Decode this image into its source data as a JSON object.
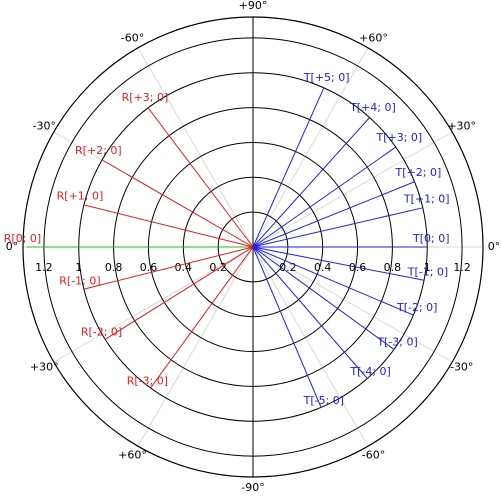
{
  "chart_data": {
    "type": "polar",
    "rlim": [
      0,
      1.32
    ],
    "rticks": [
      0.2,
      0.4,
      0.6,
      0.8,
      1,
      1.2
    ],
    "thetaticks": [
      {
        "value": 0,
        "label": "0°"
      },
      {
        "value": 30,
        "label": "+30°"
      },
      {
        "value": 60,
        "label": "+60°"
      },
      {
        "value": 90,
        "label": "+90°"
      },
      {
        "value": 120,
        "label": "-60°"
      },
      {
        "value": 150,
        "label": "-30°"
      },
      {
        "value": 180,
        "label": "0°"
      },
      {
        "value": 210,
        "label": "+30°"
      },
      {
        "value": 240,
        "label": "+60°"
      },
      {
        "value": 270,
        "label": "-90°"
      },
      {
        "value": 300,
        "label": "-60°"
      },
      {
        "value": 330,
        "label": "-30°"
      }
    ],
    "series": [
      {
        "color": "#22bb22",
        "label_color": "#e02020",
        "labels": [
          "R[0; 0]"
        ],
        "theta": [
          180
        ],
        "r": [
          1.3
        ]
      },
      {
        "color": "#e02020",
        "label_color": "#e02020",
        "labels": [
          "R[+1; 0]",
          "R[+2; 0]",
          "R[+3; 0]",
          "R[-1; 0]",
          "R[-2; 0]",
          "R[-3; 0]"
        ],
        "theta": [
          166,
          150,
          127,
          194,
          212,
          234
        ],
        "r": [
          1,
          1,
          1,
          1,
          1,
          1
        ]
      },
      {
        "color": "#2020e0",
        "label_color": "#2020e0",
        "labels": [
          "T[0; 0]",
          "T[+1; 0]",
          "T[+2; 0]",
          "T[+3; 0]",
          "T[+4; 0]",
          "T[+5; 0]",
          "T[-1; 0]",
          "T[-2; 0]",
          "T[-3; 0]",
          "T[-4; 0]",
          "T[-5; 0]"
        ],
        "theta": [
          0,
          13,
          22,
          35,
          48,
          66,
          349,
          337,
          324,
          311,
          293
        ],
        "r": [
          1,
          1,
          1,
          1,
          1,
          1,
          1,
          1,
          1,
          1,
          1
        ]
      }
    ]
  }
}
